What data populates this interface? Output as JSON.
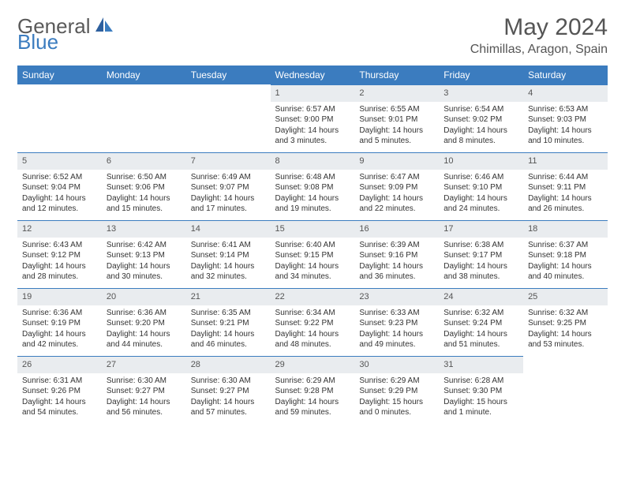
{
  "logo": {
    "text1": "General",
    "text2": "Blue"
  },
  "title": "May 2024",
  "location": "Chimillas, Aragon, Spain",
  "colors": {
    "header_bg": "#3b7cbf",
    "header_text": "#ffffff",
    "daynum_bg": "#e9ecef",
    "cell_border": "#3b7cbf",
    "body_text": "#333333",
    "title_text": "#555555"
  },
  "weekdays": [
    "Sunday",
    "Monday",
    "Tuesday",
    "Wednesday",
    "Thursday",
    "Friday",
    "Saturday"
  ],
  "weeks": [
    [
      {
        "empty": true
      },
      {
        "empty": true
      },
      {
        "empty": true
      },
      {
        "day": "1",
        "sunrise": "Sunrise: 6:57 AM",
        "sunset": "Sunset: 9:00 PM",
        "daylight": "Daylight: 14 hours and 3 minutes."
      },
      {
        "day": "2",
        "sunrise": "Sunrise: 6:55 AM",
        "sunset": "Sunset: 9:01 PM",
        "daylight": "Daylight: 14 hours and 5 minutes."
      },
      {
        "day": "3",
        "sunrise": "Sunrise: 6:54 AM",
        "sunset": "Sunset: 9:02 PM",
        "daylight": "Daylight: 14 hours and 8 minutes."
      },
      {
        "day": "4",
        "sunrise": "Sunrise: 6:53 AM",
        "sunset": "Sunset: 9:03 PM",
        "daylight": "Daylight: 14 hours and 10 minutes."
      }
    ],
    [
      {
        "day": "5",
        "sunrise": "Sunrise: 6:52 AM",
        "sunset": "Sunset: 9:04 PM",
        "daylight": "Daylight: 14 hours and 12 minutes."
      },
      {
        "day": "6",
        "sunrise": "Sunrise: 6:50 AM",
        "sunset": "Sunset: 9:06 PM",
        "daylight": "Daylight: 14 hours and 15 minutes."
      },
      {
        "day": "7",
        "sunrise": "Sunrise: 6:49 AM",
        "sunset": "Sunset: 9:07 PM",
        "daylight": "Daylight: 14 hours and 17 minutes."
      },
      {
        "day": "8",
        "sunrise": "Sunrise: 6:48 AM",
        "sunset": "Sunset: 9:08 PM",
        "daylight": "Daylight: 14 hours and 19 minutes."
      },
      {
        "day": "9",
        "sunrise": "Sunrise: 6:47 AM",
        "sunset": "Sunset: 9:09 PM",
        "daylight": "Daylight: 14 hours and 22 minutes."
      },
      {
        "day": "10",
        "sunrise": "Sunrise: 6:46 AM",
        "sunset": "Sunset: 9:10 PM",
        "daylight": "Daylight: 14 hours and 24 minutes."
      },
      {
        "day": "11",
        "sunrise": "Sunrise: 6:44 AM",
        "sunset": "Sunset: 9:11 PM",
        "daylight": "Daylight: 14 hours and 26 minutes."
      }
    ],
    [
      {
        "day": "12",
        "sunrise": "Sunrise: 6:43 AM",
        "sunset": "Sunset: 9:12 PM",
        "daylight": "Daylight: 14 hours and 28 minutes."
      },
      {
        "day": "13",
        "sunrise": "Sunrise: 6:42 AM",
        "sunset": "Sunset: 9:13 PM",
        "daylight": "Daylight: 14 hours and 30 minutes."
      },
      {
        "day": "14",
        "sunrise": "Sunrise: 6:41 AM",
        "sunset": "Sunset: 9:14 PM",
        "daylight": "Daylight: 14 hours and 32 minutes."
      },
      {
        "day": "15",
        "sunrise": "Sunrise: 6:40 AM",
        "sunset": "Sunset: 9:15 PM",
        "daylight": "Daylight: 14 hours and 34 minutes."
      },
      {
        "day": "16",
        "sunrise": "Sunrise: 6:39 AM",
        "sunset": "Sunset: 9:16 PM",
        "daylight": "Daylight: 14 hours and 36 minutes."
      },
      {
        "day": "17",
        "sunrise": "Sunrise: 6:38 AM",
        "sunset": "Sunset: 9:17 PM",
        "daylight": "Daylight: 14 hours and 38 minutes."
      },
      {
        "day": "18",
        "sunrise": "Sunrise: 6:37 AM",
        "sunset": "Sunset: 9:18 PM",
        "daylight": "Daylight: 14 hours and 40 minutes."
      }
    ],
    [
      {
        "day": "19",
        "sunrise": "Sunrise: 6:36 AM",
        "sunset": "Sunset: 9:19 PM",
        "daylight": "Daylight: 14 hours and 42 minutes."
      },
      {
        "day": "20",
        "sunrise": "Sunrise: 6:36 AM",
        "sunset": "Sunset: 9:20 PM",
        "daylight": "Daylight: 14 hours and 44 minutes."
      },
      {
        "day": "21",
        "sunrise": "Sunrise: 6:35 AM",
        "sunset": "Sunset: 9:21 PM",
        "daylight": "Daylight: 14 hours and 46 minutes."
      },
      {
        "day": "22",
        "sunrise": "Sunrise: 6:34 AM",
        "sunset": "Sunset: 9:22 PM",
        "daylight": "Daylight: 14 hours and 48 minutes."
      },
      {
        "day": "23",
        "sunrise": "Sunrise: 6:33 AM",
        "sunset": "Sunset: 9:23 PM",
        "daylight": "Daylight: 14 hours and 49 minutes."
      },
      {
        "day": "24",
        "sunrise": "Sunrise: 6:32 AM",
        "sunset": "Sunset: 9:24 PM",
        "daylight": "Daylight: 14 hours and 51 minutes."
      },
      {
        "day": "25",
        "sunrise": "Sunrise: 6:32 AM",
        "sunset": "Sunset: 9:25 PM",
        "daylight": "Daylight: 14 hours and 53 minutes."
      }
    ],
    [
      {
        "day": "26",
        "sunrise": "Sunrise: 6:31 AM",
        "sunset": "Sunset: 9:26 PM",
        "daylight": "Daylight: 14 hours and 54 minutes."
      },
      {
        "day": "27",
        "sunrise": "Sunrise: 6:30 AM",
        "sunset": "Sunset: 9:27 PM",
        "daylight": "Daylight: 14 hours and 56 minutes."
      },
      {
        "day": "28",
        "sunrise": "Sunrise: 6:30 AM",
        "sunset": "Sunset: 9:27 PM",
        "daylight": "Daylight: 14 hours and 57 minutes."
      },
      {
        "day": "29",
        "sunrise": "Sunrise: 6:29 AM",
        "sunset": "Sunset: 9:28 PM",
        "daylight": "Daylight: 14 hours and 59 minutes."
      },
      {
        "day": "30",
        "sunrise": "Sunrise: 6:29 AM",
        "sunset": "Sunset: 9:29 PM",
        "daylight": "Daylight: 15 hours and 0 minutes."
      },
      {
        "day": "31",
        "sunrise": "Sunrise: 6:28 AM",
        "sunset": "Sunset: 9:30 PM",
        "daylight": "Daylight: 15 hours and 1 minute."
      },
      {
        "empty": true
      }
    ]
  ]
}
